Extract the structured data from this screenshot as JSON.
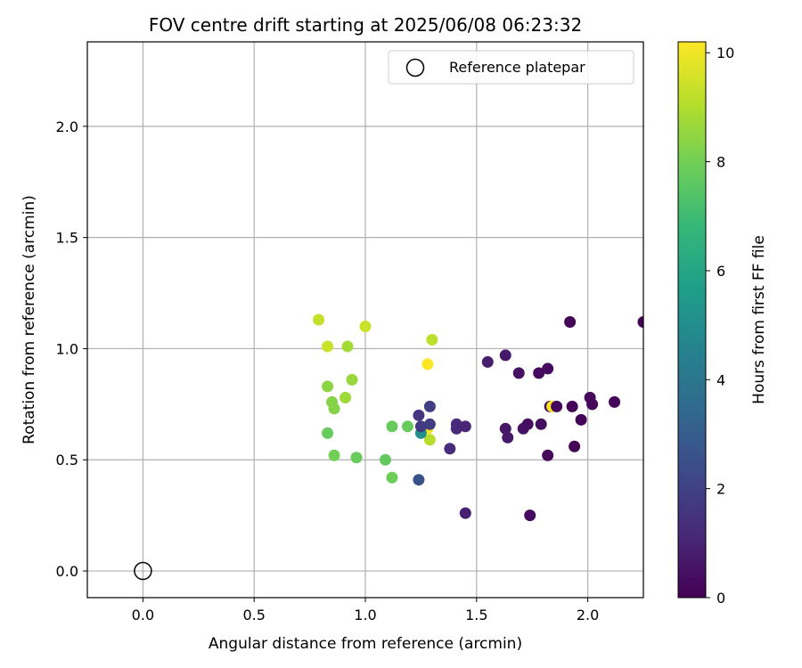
{
  "chart_data": {
    "type": "scatter",
    "title": "FOV centre drift starting at 2025/06/08 06:23:32",
    "xlabel": "Angular distance from reference (arcmin)",
    "ylabel": "Rotation from reference (arcmin)",
    "xlim": [
      -0.25,
      2.25
    ],
    "ylim": [
      -0.12,
      2.38
    ],
    "xticks": [
      "0.0",
      "0.5",
      "1.0",
      "1.5",
      "2.0"
    ],
    "xtick_values": [
      0.0,
      0.5,
      1.0,
      1.5,
      2.0
    ],
    "yticks": [
      "0.0",
      "0.5",
      "1.0",
      "1.5",
      "2.0"
    ],
    "ytick_values": [
      0.0,
      0.5,
      1.0,
      1.5,
      2.0
    ],
    "grid": true,
    "legend": {
      "position": "top-right",
      "entries": [
        "Reference platepar"
      ]
    },
    "reference_point": {
      "x": 0.0,
      "y": 0.0,
      "marker": "open-circle"
    },
    "colorbar": {
      "label": "Hours from first FF file",
      "range": [
        0,
        10.2
      ],
      "ticks": [
        "0",
        "2",
        "4",
        "6",
        "8",
        "10"
      ],
      "tick_values": [
        0,
        2,
        4,
        6,
        8,
        10
      ],
      "colormap": "viridis"
    },
    "colormap_stops": [
      "#440154",
      "#482878",
      "#3e4989",
      "#31688e",
      "#26828e",
      "#1f9e89",
      "#35b779",
      "#6ece58",
      "#b5de2b",
      "#fde725"
    ],
    "series": [
      {
        "x": [
          0.79,
          0.83,
          1.0,
          0.92,
          0.83,
          0.94,
          0.85,
          0.91,
          0.86,
          0.83,
          0.86,
          0.96,
          1.09,
          1.12,
          1.12,
          1.19,
          1.3,
          1.28,
          1.29,
          1.28,
          1.25,
          1.24,
          1.25,
          1.29,
          1.29,
          1.24,
          1.38,
          1.41,
          1.41,
          1.45,
          1.45,
          1.55,
          1.63,
          1.64,
          1.63,
          1.69,
          1.71,
          1.73,
          1.74,
          1.78,
          1.79,
          1.82,
          1.82,
          1.83,
          1.84,
          1.86,
          1.92,
          1.93,
          1.94,
          1.97,
          2.01,
          2.02,
          2.12,
          2.25
        ],
        "y": [
          1.13,
          1.01,
          1.1,
          1.01,
          0.83,
          0.86,
          0.76,
          0.78,
          0.73,
          0.62,
          0.52,
          0.51,
          0.5,
          0.65,
          0.42,
          0.65,
          1.04,
          0.93,
          0.59,
          0.64,
          0.62,
          0.7,
          0.65,
          0.74,
          0.66,
          0.41,
          0.55,
          0.66,
          0.64,
          0.65,
          0.26,
          0.94,
          0.97,
          0.6,
          0.64,
          0.89,
          0.64,
          0.66,
          0.25,
          0.89,
          0.66,
          0.91,
          0.52,
          0.74,
          0.74,
          0.74,
          1.12,
          0.74,
          0.56,
          0.68,
          0.78,
          0.75,
          0.76,
          1.12
        ],
        "hours": [
          9.3,
          9.4,
          9.4,
          8.8,
          8.4,
          8.6,
          8.3,
          8.7,
          8.3,
          7.8,
          8.0,
          7.8,
          7.7,
          7.8,
          7.9,
          7.8,
          9.2,
          10.2,
          9.1,
          10.1,
          5.1,
          1.6,
          1.8,
          1.9,
          1.9,
          2.6,
          1.3,
          1.3,
          1.2,
          1.1,
          0.9,
          0.8,
          0.7,
          0.7,
          0.6,
          0.5,
          0.5,
          0.4,
          0.3,
          0.3,
          0.4,
          0.3,
          0.2,
          0.3,
          10.2,
          0.2,
          0.1,
          0.1,
          0.1,
          0.1,
          0.2,
          0.2,
          0.1,
          0.0
        ]
      }
    ]
  }
}
